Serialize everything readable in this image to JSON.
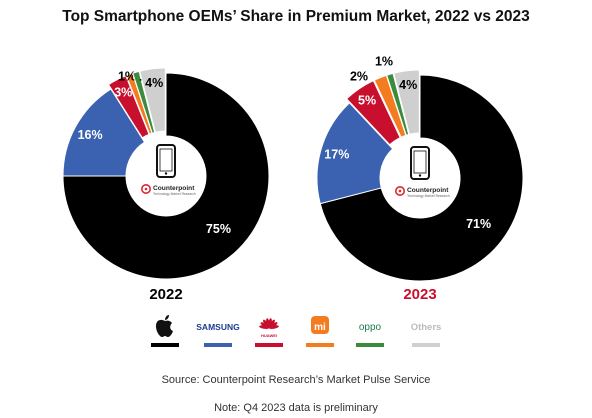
{
  "title": "Top Smartphone OEMs’ Share in Premium Market, 2022 vs 2023",
  "source": "Source: Counterpoint Research’s Market Pulse Service",
  "note": "Note: Q4 2023 data is preliminary",
  "center_logo": {
    "brand": "Counterpoint",
    "tagline": "Technology Market Research",
    "icon": "smartphone-icon"
  },
  "legend": [
    {
      "key": "apple",
      "label": "",
      "icon": "apple-icon",
      "color": "#000000"
    },
    {
      "key": "samsung",
      "label": "SAMSUNG",
      "color": "#3a62b0"
    },
    {
      "key": "huawei",
      "label": "HUAWEI",
      "icon": "huawei-icon",
      "color": "#c8102e"
    },
    {
      "key": "xiaomi",
      "label": "mi",
      "icon": "xiaomi-icon",
      "color": "#f47c20"
    },
    {
      "key": "oppo",
      "label": "oppo",
      "color": "#3b8b3c"
    },
    {
      "key": "others",
      "label": "Others",
      "color": "#cfcfcf"
    }
  ],
  "chart_data": [
    {
      "type": "pie",
      "title": "2022",
      "title_color": "#000000",
      "slices": [
        {
          "name": "Apple",
          "value": 75,
          "label": "75%",
          "color": "#000000"
        },
        {
          "name": "Samsung",
          "value": 16,
          "label": "16%",
          "color": "#3a62b0"
        },
        {
          "name": "Huawei",
          "value": 3,
          "label": "3%",
          "color": "#c8102e"
        },
        {
          "name": "Xiaomi",
          "value": 1,
          "label": "1%",
          "color": "#f47c20"
        },
        {
          "name": "OPPO",
          "value": 1,
          "label": "1%",
          "color": "#3b8b3c"
        },
        {
          "name": "Others",
          "value": 4,
          "label": "4%",
          "color": "#cfcfcf"
        }
      ]
    },
    {
      "type": "pie",
      "title": "2023",
      "title_color": "#c8102e",
      "slices": [
        {
          "name": "Apple",
          "value": 71,
          "label": "71%",
          "color": "#000000"
        },
        {
          "name": "Samsung",
          "value": 17,
          "label": "17%",
          "color": "#3a62b0"
        },
        {
          "name": "Huawei",
          "value": 5,
          "label": "5%",
          "color": "#c8102e"
        },
        {
          "name": "Xiaomi",
          "value": 2,
          "label": "2%",
          "color": "#f47c20"
        },
        {
          "name": "OPPO",
          "value": 1,
          "label": "1%",
          "color": "#3b8b3c"
        },
        {
          "name": "Others",
          "value": 4,
          "label": "4%",
          "color": "#cfcfcf"
        }
      ]
    }
  ]
}
